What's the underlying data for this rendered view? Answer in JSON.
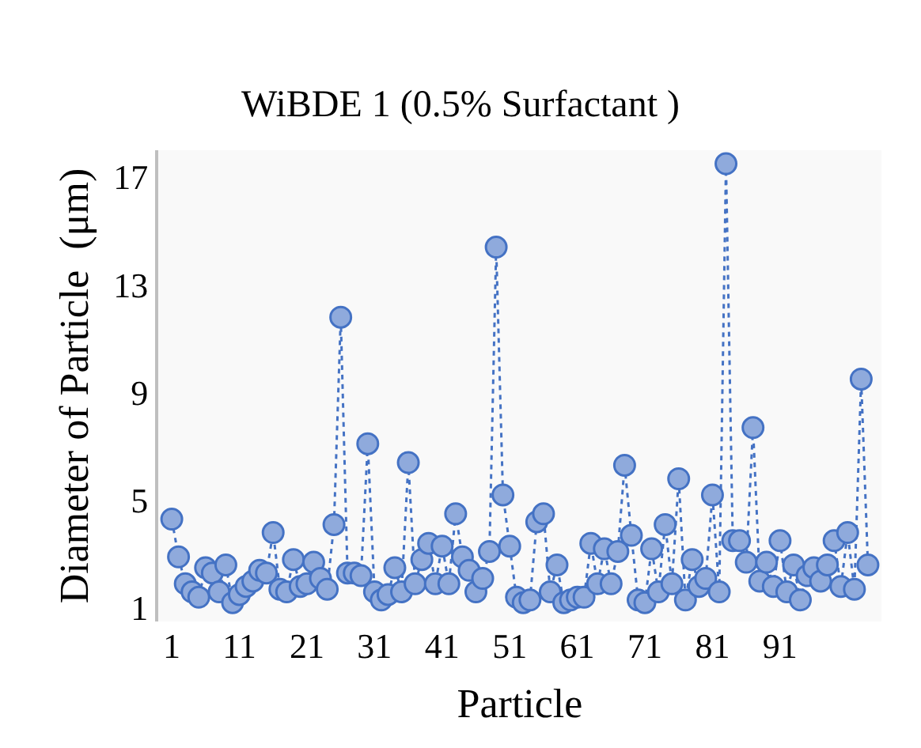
{
  "chart_data": {
    "type": "line",
    "title": "WiBDE 1 (0.5% Surfactant )",
    "xlabel": "Particle",
    "ylabel": "Diameter of Particle  (μm)",
    "x": [
      1,
      2,
      3,
      4,
      5,
      6,
      7,
      8,
      9,
      10,
      11,
      12,
      13,
      14,
      15,
      16,
      17,
      18,
      19,
      20,
      21,
      22,
      23,
      24,
      25,
      26,
      27,
      28,
      29,
      30,
      31,
      32,
      33,
      34,
      35,
      36,
      37,
      38,
      39,
      40,
      41,
      42,
      43,
      44,
      45,
      46,
      47,
      48,
      49,
      50,
      51,
      52,
      53,
      54,
      55,
      56,
      57,
      58,
      59,
      60,
      61,
      62,
      63,
      64,
      65,
      66,
      67,
      68,
      69,
      70,
      71,
      72,
      73,
      74,
      75,
      76,
      77,
      78,
      79,
      80,
      81,
      82,
      83,
      84,
      85,
      86,
      87,
      88,
      89,
      90,
      91,
      92,
      93,
      94,
      95,
      96,
      97,
      98,
      99,
      100,
      101,
      102,
      103,
      104
    ],
    "series": [
      {
        "color": "#4472c4",
        "values": [
          4.3,
          2.9,
          1.9,
          1.6,
          1.4,
          2.5,
          2.3,
          1.6,
          2.6,
          1.2,
          1.5,
          1.8,
          2.0,
          2.4,
          2.3,
          3.8,
          1.7,
          1.6,
          2.8,
          1.8,
          1.9,
          2.7,
          2.1,
          1.7,
          4.1,
          11.8,
          2.3,
          2.3,
          2.2,
          7.1,
          1.6,
          1.3,
          1.5,
          2.5,
          1.6,
          6.4,
          1.9,
          2.8,
          3.4,
          1.9,
          3.3,
          1.9,
          4.5,
          2.9,
          2.4,
          1.6,
          2.1,
          3.1,
          14.4,
          5.2,
          3.3,
          1.4,
          1.2,
          1.3,
          4.2,
          4.5,
          1.6,
          2.6,
          1.2,
          1.3,
          1.4,
          1.4,
          3.4,
          1.9,
          3.2,
          1.9,
          3.1,
          6.3,
          3.7,
          1.3,
          1.2,
          3.2,
          1.6,
          4.1,
          1.9,
          5.8,
          1.3,
          2.8,
          1.8,
          2.1,
          5.2,
          1.6,
          17.5,
          3.5,
          3.5,
          2.7,
          7.7,
          2.0,
          2.7,
          1.8,
          3.5,
          1.6,
          2.6,
          1.3,
          2.2,
          2.5,
          2.0,
          2.6,
          3.5,
          1.8,
          3.8,
          1.7,
          9.5,
          2.6
        ]
      }
    ],
    "xlim": [
      -1,
      106
    ],
    "xticks": [
      1,
      11,
      21,
      31,
      41,
      51,
      61,
      71,
      81,
      91
    ],
    "ylim": [
      0.5,
      18
    ],
    "yticks": [
      1,
      5,
      9,
      13,
      17
    ],
    "grid": false,
    "marker": "circle",
    "line_style": "dotted"
  }
}
